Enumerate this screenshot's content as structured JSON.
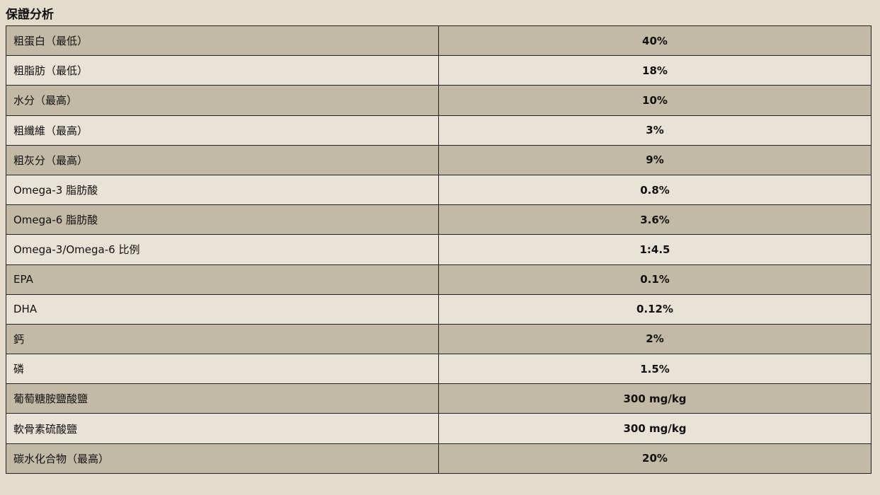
{
  "title": "保證分析",
  "rows": [
    {
      "label": "粗蛋白（最低）",
      "value": "40%"
    },
    {
      "label": "粗脂肪（最低）",
      "value": "18%"
    },
    {
      "label": "水分（最高）",
      "value": "10%"
    },
    {
      "label": "粗纖維（最高）",
      "value": "3%"
    },
    {
      "label": "粗灰分（最高）",
      "value": "9%"
    },
    {
      "label": "Omega-3 脂肪酸",
      "value": "0.8%"
    },
    {
      "label": "Omega-6 脂肪酸",
      "value": "3.6%"
    },
    {
      "label": "Omega-3/Omega-6 比例",
      "value": "1:4.5"
    },
    {
      "label": "EPA",
      "value": "0.1%"
    },
    {
      "label": "DHA",
      "value": "0.12%"
    },
    {
      "label": "鈣",
      "value": "2%"
    },
    {
      "label": "磷",
      "value": "1.5%"
    },
    {
      "label": "葡萄糖胺鹽酸鹽",
      "value": "300 mg/kg"
    },
    {
      "label": "軟骨素硫酸鹽",
      "value": "300 mg/kg"
    },
    {
      "label": "碳水化合物（最高）",
      "value": "20%"
    }
  ]
}
